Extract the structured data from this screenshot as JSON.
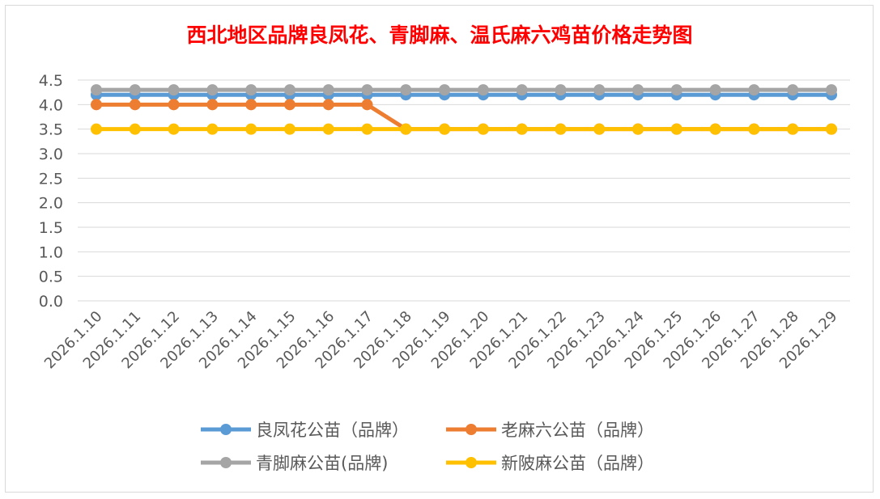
{
  "chart_data": {
    "type": "line",
    "title": "西北地区品牌良凤花、青脚麻、温氏麻六鸡苗价格走势图",
    "xlabel": "",
    "ylabel": "",
    "ylim": [
      0,
      4.5
    ],
    "yticks": [
      "0.0",
      "0.5",
      "1.0",
      "1.5",
      "2.0",
      "2.5",
      "3.0",
      "3.5",
      "4.0",
      "4.5"
    ],
    "grid": true,
    "legend_position": "bottom",
    "categories": [
      "2026.1.10",
      "2026.1.11",
      "2026.1.12",
      "2026.1.13",
      "2026.1.14",
      "2026.1.15",
      "2026.1.16",
      "2026.1.17",
      "2026.1.18",
      "2026.1.19",
      "2026.1.20",
      "2026.1.21",
      "2026.1.22",
      "2026.1.23",
      "2026.1.24",
      "2026.1.25",
      "2026.1.26",
      "2026.1.27",
      "2026.1.28",
      "2026.1.29"
    ],
    "series": [
      {
        "name": "良凤花公苗（品牌）",
        "color": "#5b9bd5",
        "values": [
          4.2,
          4.2,
          4.2,
          4.2,
          4.2,
          4.2,
          4.2,
          4.2,
          4.2,
          4.2,
          4.2,
          4.2,
          4.2,
          4.2,
          4.2,
          4.2,
          4.2,
          4.2,
          4.2,
          4.2
        ]
      },
      {
        "name": "老麻六公苗（品牌）",
        "color": "#ed7d31",
        "values": [
          4.0,
          4.0,
          4.0,
          4.0,
          4.0,
          4.0,
          4.0,
          4.0,
          3.5,
          3.5,
          3.5,
          3.5,
          3.5,
          3.5,
          3.5,
          3.5,
          3.5,
          3.5,
          3.5,
          3.5
        ]
      },
      {
        "name": "青脚麻公苗(品牌)",
        "color": "#a5a5a5",
        "values": [
          4.3,
          4.3,
          4.3,
          4.3,
          4.3,
          4.3,
          4.3,
          4.3,
          4.3,
          4.3,
          4.3,
          4.3,
          4.3,
          4.3,
          4.3,
          4.3,
          4.3,
          4.3,
          4.3,
          4.3
        ]
      },
      {
        "name": "新陂麻公苗（品牌）",
        "color": "#ffc000",
        "values": [
          3.5,
          3.5,
          3.5,
          3.5,
          3.5,
          3.5,
          3.5,
          3.5,
          3.5,
          3.5,
          3.5,
          3.5,
          3.5,
          3.5,
          3.5,
          3.5,
          3.5,
          3.5,
          3.5,
          3.5
        ]
      }
    ]
  }
}
